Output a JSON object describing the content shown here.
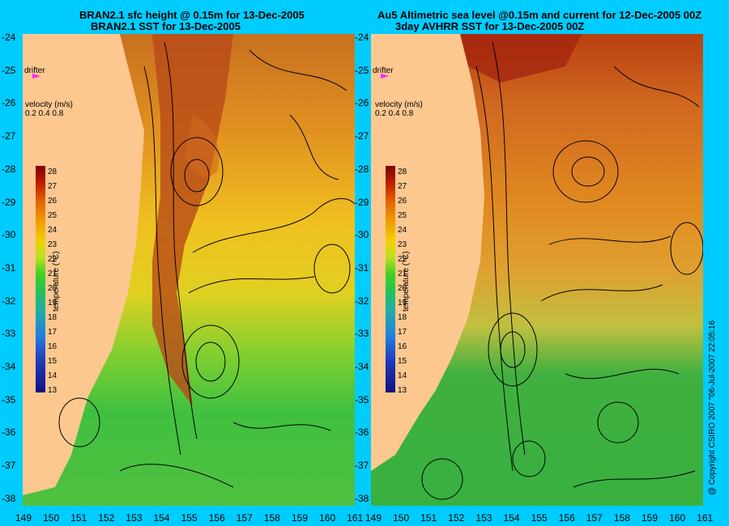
{
  "left": {
    "title_line1": "BRAN2.1 sfc height @ 0.15m for 13-Dec-2005",
    "title_line2": "BRAN2.1 SST for 13-Dec-2005"
  },
  "right": {
    "title_line1": "Au5 Altimetric sea level  @0.15m and current for 12-Dec-2005 00Z",
    "title_line2": "3day AVHRR SST for 13-Dec-2005 00Z"
  },
  "overlay": {
    "drifter_label": "drifter",
    "velocity_label": "velocity (m/s)",
    "velocity_scale": "0.2 0.4 0.8",
    "temperature_label": "temperature (°C)"
  },
  "colorbar_ticks": [
    "28",
    "27",
    "26",
    "25",
    "24",
    "23",
    "22",
    "21",
    "20",
    "19",
    "18",
    "17",
    "16",
    "15",
    "14",
    "13"
  ],
  "lat_ticks": [
    "-24",
    "-25",
    "-26",
    "-27",
    "-28",
    "-29",
    "-30",
    "-31",
    "-32",
    "-33",
    "-34",
    "-35",
    "-36",
    "-37",
    "-38"
  ],
  "lon_ticks": [
    "149",
    "150",
    "151",
    "152",
    "153",
    "154",
    "155",
    "156",
    "157",
    "158",
    "159",
    "160",
    "161"
  ],
  "copyright": "@ Copyright CSIRO 2007 \"06-Jul-2007 22:05:16"
}
